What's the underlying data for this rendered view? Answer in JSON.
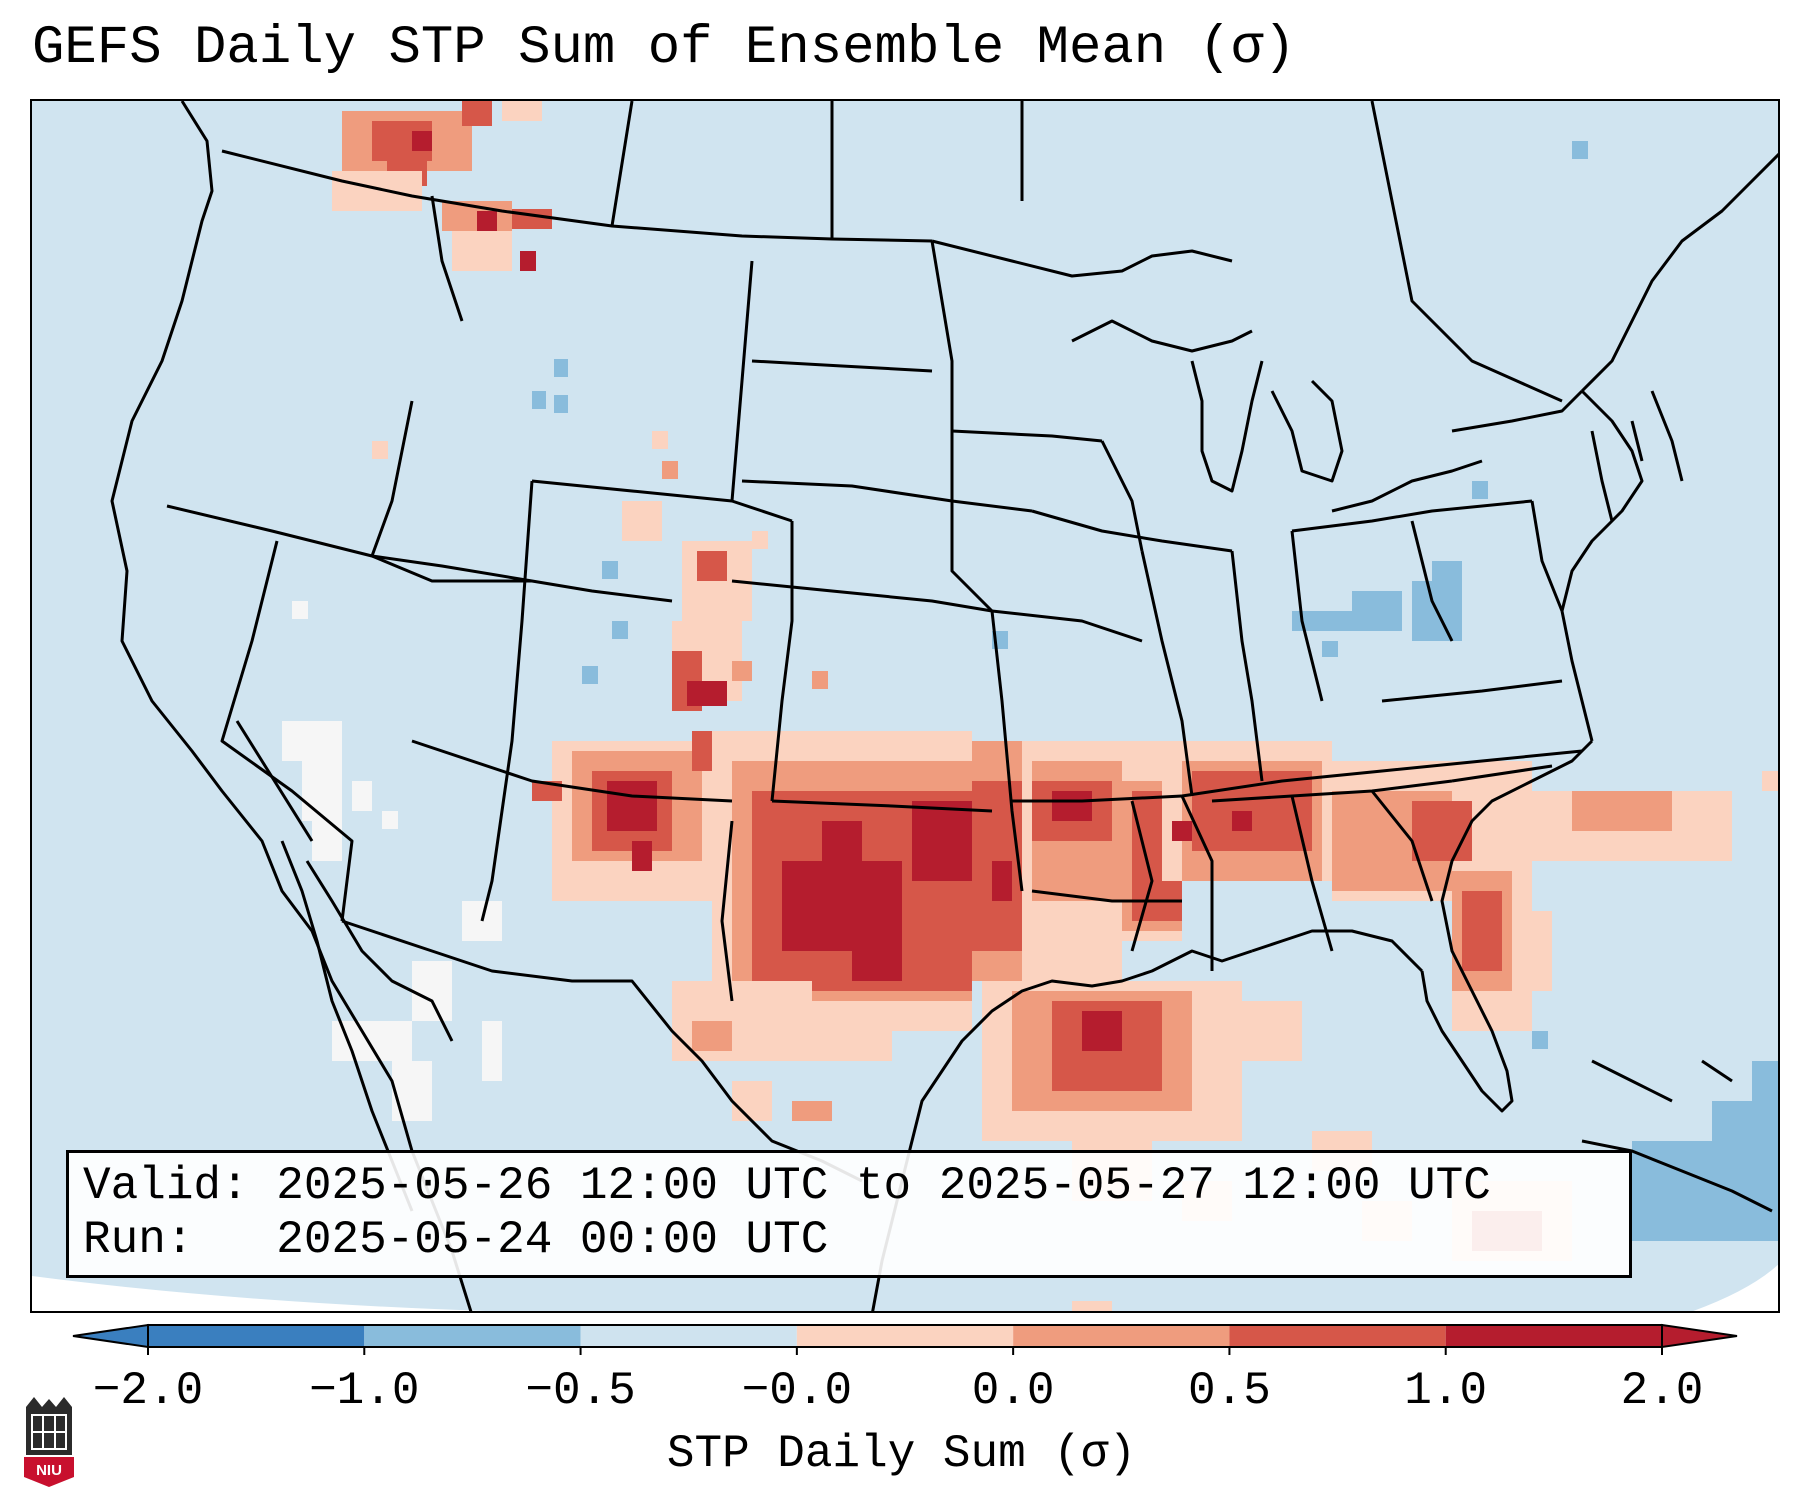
{
  "title": "GEFS Daily STP Sum of Ensemble Mean (σ)",
  "info": {
    "valid_label": "Valid:",
    "valid_text": "2025-05-26 12:00 UTC to 2025-05-27 12:00 UTC",
    "run_label": "Run:",
    "run_text": "2025-05-24 00:00 UTC"
  },
  "colorbar": {
    "label": "STP Daily Sum (σ)",
    "tick_labels": [
      "−2.0",
      "−1.0",
      "−0.5",
      "−0.0",
      "0.0",
      "0.5",
      "1.0",
      "2.0"
    ],
    "colors": [
      "#3a7fbf",
      "#89bcdc",
      "#cfe3ef",
      "#f6f6f6",
      "#fbd3c0",
      "#ef9c7e",
      "#d65749",
      "#b51d2e"
    ],
    "extend": "both"
  },
  "map": {
    "background_color": "#d0e4f0",
    "anomaly_regions": [
      {
        "name": "Oklahoma / North Texas",
        "level": "2.0"
      },
      {
        "name": "Arkansas / Lower Mississippi Valley",
        "level": "1.0"
      },
      {
        "name": "Mississippi / Alabama",
        "level": "1.0"
      },
      {
        "name": "Georgia / Carolina Coast",
        "level": "1.0"
      },
      {
        "name": "New Mexico",
        "level": "2.0"
      },
      {
        "name": "Gulf of Mexico",
        "level": "1.0"
      },
      {
        "name": "Idaho / Montana border",
        "level": "1.0"
      },
      {
        "name": "Colorado Front Range",
        "level": "0.5"
      }
    ]
  },
  "logo": {
    "text": "NIU"
  }
}
